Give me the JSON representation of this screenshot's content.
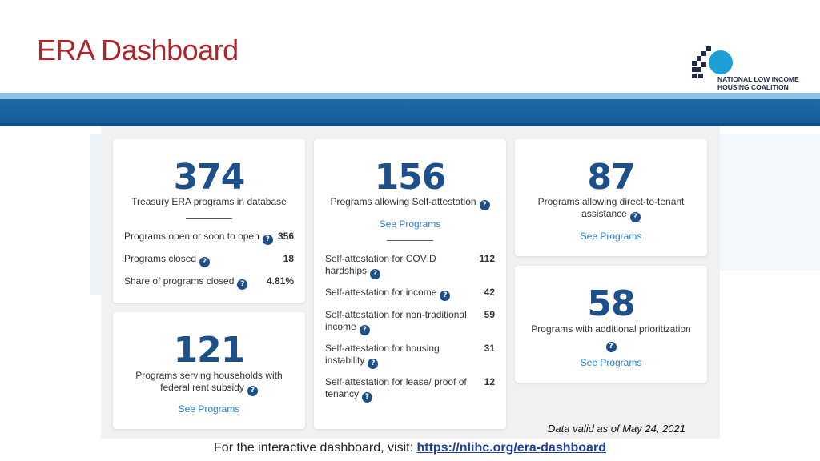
{
  "slide": {
    "title": "ERA Dashboard",
    "logo_line1": "NATIONAL LOW INCOME",
    "logo_line2": "HOUSING COALITION"
  },
  "colors": {
    "title": "#b0232a",
    "band": "#1f6aa6",
    "accent_number": "#1d4f8b",
    "link": "#2a7fd4"
  },
  "cards": {
    "total": {
      "number": "374",
      "caption": "Treasury ERA programs in database",
      "rows": [
        {
          "label": "Programs open or soon to open",
          "value": "356"
        },
        {
          "label": "Programs closed",
          "value": "18"
        },
        {
          "label": "Share of programs closed",
          "value": "4.81%"
        }
      ]
    },
    "federal": {
      "number": "121",
      "caption_line1": "Programs serving households with",
      "caption_line2": "federal rent subsidy",
      "link": "See Programs"
    },
    "self_attest": {
      "number": "156",
      "caption": "Programs allowing Self-attestation",
      "link": "See Programs",
      "rows": [
        {
          "line1": "Self-attestation for COVID",
          "line2": "hardships",
          "value": "112"
        },
        {
          "line1": "Self-attestation for income",
          "line2": "",
          "value": "42"
        },
        {
          "line1": "Self-attestation for non-traditional",
          "line2": "income",
          "value": "59"
        },
        {
          "line1": "Self-attestation for housing",
          "line2": "instability",
          "value": "31"
        },
        {
          "line1": "Self-attestation for lease/ proof of",
          "line2": "tenancy",
          "value": "12"
        }
      ]
    },
    "direct": {
      "number": "87",
      "caption_line1": "Programs allowing direct-to-tenant",
      "caption_line2": "assistance",
      "link": "See Programs"
    },
    "prior": {
      "number": "58",
      "caption": "Programs with additional prioritization",
      "link": "See Programs"
    }
  },
  "help_glyph": "?",
  "data_valid": "Data valid as of May 24, 2021",
  "footer": {
    "text": "For the interactive dashboard, visit: ",
    "link": "https://nlihc.org/era-dashboard"
  }
}
